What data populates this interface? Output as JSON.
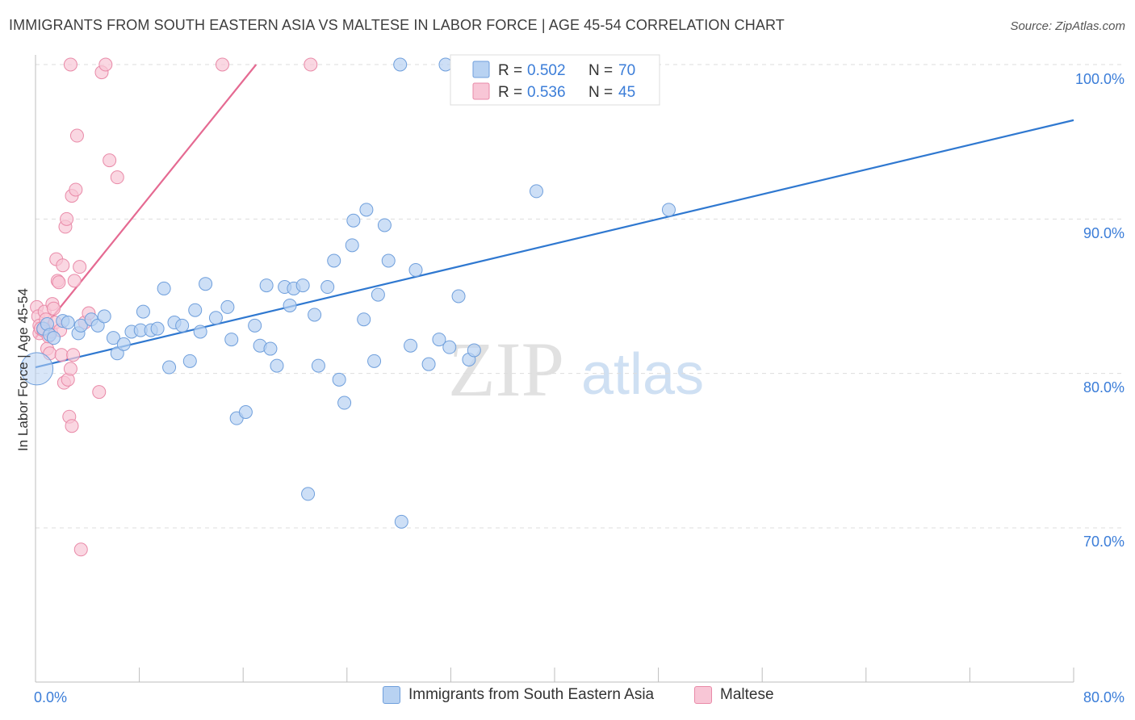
{
  "header": {
    "title": "IMMIGRANTS FROM SOUTH EASTERN ASIA VS MALTESE IN LABOR FORCE | AGE 45-54 CORRELATION CHART",
    "source": "Source: ZipAtlas.com"
  },
  "watermark": {
    "zip": "ZIP",
    "atlas": "atlas"
  },
  "legend": {
    "rows": [
      {
        "r_label": "R =",
        "r_value": "0.502",
        "n_label": "N =",
        "n_value": "70"
      },
      {
        "r_label": "R =",
        "r_value": "0.536",
        "n_label": "N =",
        "n_value": "45"
      }
    ]
  },
  "colors": {
    "blue_fill": "#b8d2f2",
    "blue_stroke": "#6f9fdc",
    "blue_line": "#2f78d0",
    "pink_fill": "#f8c6d6",
    "pink_stroke": "#e98aa8",
    "pink_line": "#e56a92",
    "tick_label": "#3b7dd8",
    "grid": "#dddddd"
  },
  "chart_data": {
    "type": "scatter",
    "title": "IMMIGRANTS FROM SOUTH EASTERN ASIA VS MALTESE IN LABOR FORCE | AGE 45-54 CORRELATION CHART",
    "xlabel": "",
    "ylabel": "In Labor Force | Age 45-54",
    "xlim": [
      0,
      80
    ],
    "ylim": [
      60,
      101
    ],
    "x_tick_labels": [
      "0.0%",
      "80.0%"
    ],
    "y_ticks": [
      70,
      80,
      90,
      100
    ],
    "y_tick_labels": [
      "70.0%",
      "80.0%",
      "90.0%",
      "100.0%"
    ],
    "grid": true,
    "legend_position": "top-center",
    "series": [
      {
        "name": "Immigrants from South Eastern Asia",
        "R": 0.502,
        "N": 70,
        "trendline": {
          "x": [
            0,
            80
          ],
          "y": [
            80.4,
            96.4
          ]
        },
        "points": [
          [
            0.1,
            80.3
          ],
          [
            0.6,
            82.9
          ],
          [
            0.9,
            83.2
          ],
          [
            1.1,
            82.5
          ],
          [
            1.4,
            82.3
          ],
          [
            2.1,
            83.4
          ],
          [
            2.5,
            83.3
          ],
          [
            3.3,
            82.6
          ],
          [
            3.5,
            83.1
          ],
          [
            4.3,
            83.5
          ],
          [
            4.8,
            83.1
          ],
          [
            5.3,
            83.7
          ],
          [
            6.0,
            82.3
          ],
          [
            6.3,
            81.3
          ],
          [
            6.8,
            81.9
          ],
          [
            7.4,
            82.7
          ],
          [
            8.1,
            82.8
          ],
          [
            8.3,
            84.0
          ],
          [
            8.9,
            82.8
          ],
          [
            9.4,
            82.9
          ],
          [
            9.9,
            85.5
          ],
          [
            10.3,
            80.4
          ],
          [
            10.7,
            83.3
          ],
          [
            11.3,
            83.1
          ],
          [
            11.9,
            80.8
          ],
          [
            12.3,
            84.1
          ],
          [
            12.7,
            82.7
          ],
          [
            13.1,
            85.8
          ],
          [
            13.9,
            83.6
          ],
          [
            14.8,
            84.3
          ],
          [
            15.1,
            82.2
          ],
          [
            15.5,
            77.1
          ],
          [
            16.2,
            77.5
          ],
          [
            16.9,
            83.1
          ],
          [
            17.3,
            81.8
          ],
          [
            17.8,
            85.7
          ],
          [
            18.1,
            81.6
          ],
          [
            18.6,
            80.5
          ],
          [
            19.2,
            85.6
          ],
          [
            19.6,
            84.4
          ],
          [
            19.9,
            85.5
          ],
          [
            20.6,
            85.7
          ],
          [
            21.0,
            72.2
          ],
          [
            21.5,
            83.8
          ],
          [
            21.8,
            80.5
          ],
          [
            22.5,
            85.6
          ],
          [
            23.0,
            87.3
          ],
          [
            23.4,
            79.6
          ],
          [
            23.8,
            78.1
          ],
          [
            24.4,
            88.3
          ],
          [
            24.5,
            89.9
          ],
          [
            25.3,
            83.5
          ],
          [
            25.5,
            90.6
          ],
          [
            26.1,
            80.8
          ],
          [
            26.4,
            85.1
          ],
          [
            26.9,
            89.6
          ],
          [
            27.2,
            87.3
          ],
          [
            28.2,
            70.4
          ],
          [
            28.9,
            81.8
          ],
          [
            29.3,
            86.7
          ],
          [
            30.3,
            80.6
          ],
          [
            31.1,
            82.2
          ],
          [
            31.9,
            81.7
          ],
          [
            32.6,
            85.0
          ],
          [
            33.4,
            80.9
          ],
          [
            33.8,
            81.5
          ],
          [
            38.6,
            91.8
          ],
          [
            48.8,
            90.6
          ],
          [
            28.1,
            100.0
          ],
          [
            31.6,
            100.0
          ]
        ]
      },
      {
        "name": "Maltese",
        "R": 0.536,
        "N": 45,
        "trendline": {
          "x": [
            0,
            17
          ],
          "y": [
            82.3,
            100.0
          ]
        },
        "points": [
          [
            0.1,
            84.3
          ],
          [
            0.2,
            83.7
          ],
          [
            0.3,
            83.1
          ],
          [
            0.3,
            82.6
          ],
          [
            0.4,
            82.9
          ],
          [
            0.6,
            82.8
          ],
          [
            0.7,
            84.0
          ],
          [
            0.8,
            83.5
          ],
          [
            0.9,
            81.6
          ],
          [
            1.0,
            82.4
          ],
          [
            1.1,
            81.3
          ],
          [
            1.2,
            82.7
          ],
          [
            1.3,
            84.5
          ],
          [
            1.4,
            84.2
          ],
          [
            1.5,
            83.3
          ],
          [
            1.6,
            87.4
          ],
          [
            1.7,
            86.0
          ],
          [
            1.8,
            85.9
          ],
          [
            1.9,
            82.8
          ],
          [
            2.0,
            81.2
          ],
          [
            2.1,
            87.0
          ],
          [
            2.2,
            79.4
          ],
          [
            2.3,
            89.5
          ],
          [
            2.4,
            90.0
          ],
          [
            2.5,
            79.6
          ],
          [
            2.6,
            77.2
          ],
          [
            2.7,
            80.3
          ],
          [
            2.8,
            91.5
          ],
          [
            2.8,
            76.6
          ],
          [
            2.9,
            81.2
          ],
          [
            3.0,
            86.0
          ],
          [
            3.1,
            91.9
          ],
          [
            3.2,
            95.4
          ],
          [
            3.4,
            86.9
          ],
          [
            3.5,
            68.6
          ],
          [
            3.8,
            83.3
          ],
          [
            4.1,
            83.9
          ],
          [
            4.9,
            78.8
          ],
          [
            5.1,
            99.5
          ],
          [
            5.7,
            93.8
          ],
          [
            6.3,
            92.7
          ],
          [
            2.7,
            100.0
          ],
          [
            5.4,
            100.0
          ],
          [
            14.4,
            100.0
          ],
          [
            21.2,
            100.0
          ]
        ]
      }
    ]
  },
  "bottom_legend": {
    "items": [
      {
        "label": "Immigrants from South Eastern Asia"
      },
      {
        "label": "Maltese"
      }
    ]
  }
}
